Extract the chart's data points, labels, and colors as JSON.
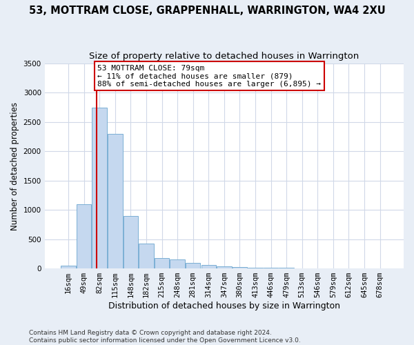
{
  "title": "53, MOTTRAM CLOSE, GRAPPENHALL, WARRINGTON, WA4 2XU",
  "subtitle": "Size of property relative to detached houses in Warrington",
  "xlabel": "Distribution of detached houses by size in Warrington",
  "ylabel": "Number of detached properties",
  "categories": [
    "16sqm",
    "49sqm",
    "82sqm",
    "115sqm",
    "148sqm",
    "182sqm",
    "215sqm",
    "248sqm",
    "281sqm",
    "314sqm",
    "347sqm",
    "380sqm",
    "413sqm",
    "446sqm",
    "479sqm",
    "513sqm",
    "546sqm",
    "579sqm",
    "612sqm",
    "645sqm",
    "678sqm"
  ],
  "values": [
    50,
    1100,
    2750,
    2300,
    900,
    420,
    175,
    155,
    100,
    60,
    35,
    25,
    15,
    10,
    8,
    5,
    4,
    3,
    2,
    1,
    1
  ],
  "bar_color": "#c5d8ef",
  "bar_edge_color": "#7aafd4",
  "annotation_text": "53 MOTTRAM CLOSE: 79sqm\n← 11% of detached houses are smaller (879)\n88% of semi-detached houses are larger (6,895) →",
  "annotation_box_facecolor": "#ffffff",
  "annotation_box_edgecolor": "#cc0000",
  "vline_color": "#cc0000",
  "vline_x": 1.82,
  "ylim": [
    0,
    3500
  ],
  "yticks": [
    0,
    500,
    1000,
    1500,
    2000,
    2500,
    3000,
    3500
  ],
  "plot_bg": "#ffffff",
  "fig_bg": "#e8eef6",
  "footer": "Contains HM Land Registry data © Crown copyright and database right 2024.\nContains public sector information licensed under the Open Government Licence v3.0.",
  "title_fontsize": 10.5,
  "subtitle_fontsize": 9.5,
  "xlabel_fontsize": 9,
  "ylabel_fontsize": 8.5,
  "tick_fontsize": 7.5,
  "annot_fontsize": 8,
  "footer_fontsize": 6.5
}
